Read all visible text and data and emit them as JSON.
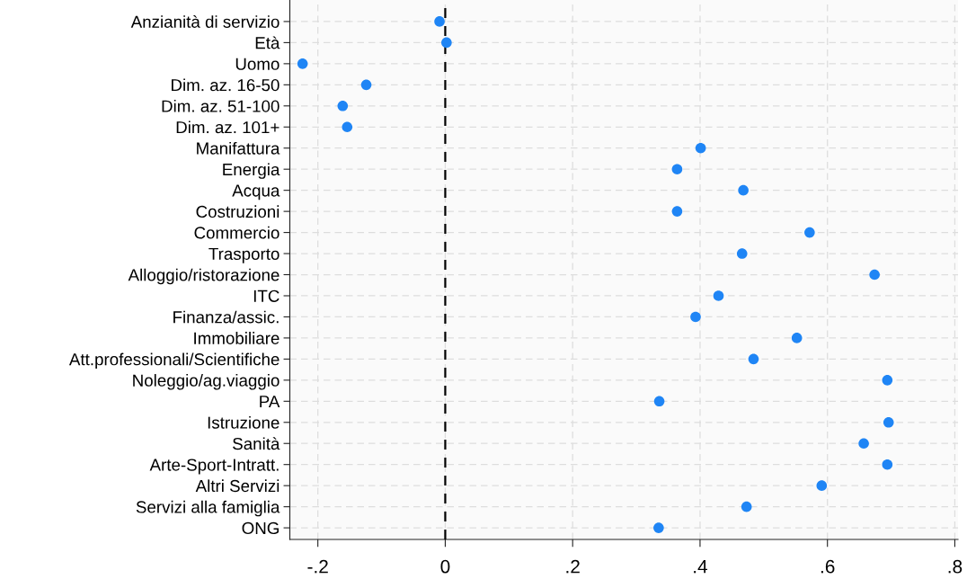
{
  "chart_data": {
    "type": "scatter",
    "orientation": "horizontal",
    "categories": [
      "Anzianità di servizio",
      "Età",
      "Uomo",
      "Dim. az. 16-50",
      "Dim. az. 51-100",
      "Dim. az. 101+",
      "Manifattura",
      "Energia",
      "Acqua",
      "Costruzioni",
      "Commercio",
      "Trasporto",
      "Alloggio/ristorazione",
      "ITC",
      "Finanza/assic.",
      "Immobiliare",
      "Att.professionali/Scientifiche",
      "Noleggio/ag.viaggio",
      "PA",
      "Istruzione",
      "Sanità",
      "Arte-Sport-Intratt.",
      "Altri Servizi",
      "Servizi alla famiglia",
      "ONG"
    ],
    "series": [
      {
        "color": "#1f85f5",
        "values": [
          -0.009,
          0.002,
          -0.224,
          -0.124,
          -0.161,
          -0.154,
          0.401,
          0.364,
          0.468,
          0.364,
          0.572,
          0.466,
          0.674,
          0.429,
          0.393,
          0.552,
          0.484,
          0.694,
          0.336,
          0.696,
          0.657,
          0.694,
          0.591,
          0.473,
          0.335
        ]
      }
    ],
    "xlim": [
      -0.244,
      0.805
    ],
    "xticks": [
      {
        "value": -0.2,
        "label": "-.2"
      },
      0,
      {
        "value": 0.2,
        "label": ".2"
      },
      {
        "value": 0.4,
        "label": ".4"
      },
      {
        "value": 0.6,
        "label": ".6"
      },
      {
        "value": 0.8,
        "label": ".8"
      }
    ],
    "ref_lines": [
      {
        "axis": "x",
        "value": 0,
        "color": "#000000",
        "line_style": "dashed"
      }
    ],
    "grid": true,
    "marker": "circle",
    "legend": false
  }
}
